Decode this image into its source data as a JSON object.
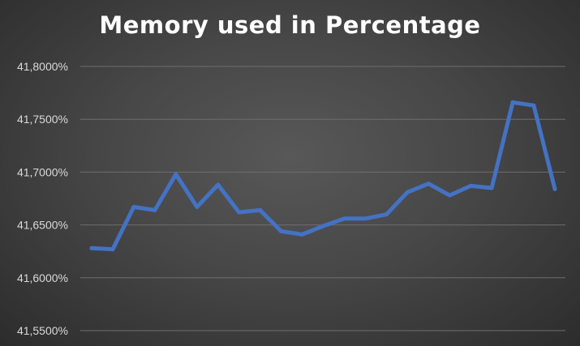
{
  "chart_data": {
    "type": "line",
    "title": "Memory used in Percentage",
    "xlabel": "",
    "ylabel": "",
    "ylim": [
      41.55,
      41.8
    ],
    "y_ticks": [
      41.8,
      41.75,
      41.7,
      41.65,
      41.6,
      41.55
    ],
    "y_tick_labels": [
      "41,8000%",
      "41,7500%",
      "41,7000%",
      "41,6500%",
      "41,6000%",
      "41,5500%"
    ],
    "grid": true,
    "legend": "none",
    "line_color": "#4472c4",
    "series": [
      {
        "values": [
          41.628,
          41.627,
          41.667,
          41.664,
          41.698,
          41.667,
          41.688,
          41.662,
          41.664,
          41.644,
          41.641,
          41.649,
          41.656,
          41.656,
          41.66,
          41.681,
          41.689,
          41.678,
          41.687,
          41.685,
          41.766,
          41.763,
          41.684
        ]
      }
    ]
  }
}
